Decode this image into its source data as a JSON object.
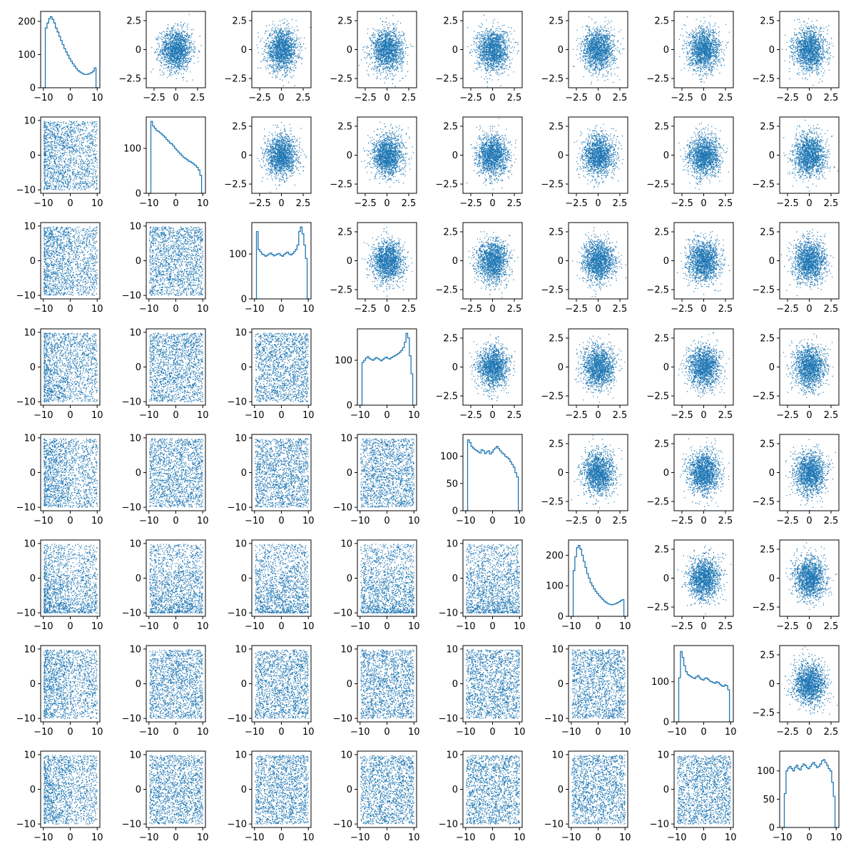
{
  "figure": {
    "rows": 8,
    "cols": 8
  },
  "chart_data": {
    "type": "scatter",
    "layout": "pair-plot grid: histograms on diagonal, scatter of independent normals above, scatter of uniform-range samples below",
    "color": "#1f77b4",
    "grid": false,
    "diagonal": [
      {
        "type": "hist",
        "ylim": [
          0,
          230
        ],
        "yticks": [
          0,
          100,
          200
        ],
        "xticks": [
          -10,
          0,
          10
        ],
        "bins_x": [
          -9.9,
          10.2
        ],
        "counts": [
          0,
          180,
          195,
          208,
          214,
          206,
          195,
          180,
          168,
          155,
          142,
          130,
          118,
          108,
          98,
          88,
          80,
          72,
          65,
          58,
          52,
          48,
          45,
          42,
          40,
          40,
          41,
          43,
          46,
          50,
          60,
          0
        ]
      },
      {
        "type": "hist",
        "ylim": [
          0,
          170
        ],
        "yticks": [
          0,
          100
        ],
        "xticks": [
          -10,
          0,
          10
        ],
        "bins_x": [
          -9.9,
          10.2
        ],
        "counts": [
          0,
          160,
          150,
          145,
          140,
          138,
          135,
          132,
          128,
          125,
          120,
          116,
          112,
          110,
          105,
          100,
          96,
          92,
          88,
          84,
          80,
          78,
          75,
          72,
          70,
          68,
          65,
          62,
          58,
          52,
          40,
          0
        ]
      },
      {
        "type": "hist",
        "ylim": [
          0,
          170
        ],
        "yticks": [
          0,
          100
        ],
        "xticks": [
          -10,
          0,
          10
        ],
        "bins_x": [
          -9.9,
          10.2
        ],
        "counts": [
          0,
          150,
          110,
          105,
          100,
          98,
          95,
          97,
          100,
          102,
          99,
          96,
          98,
          100,
          101,
          97,
          95,
          99,
          102,
          104,
          100,
          98,
          101,
          105,
          110,
          120,
          150,
          160,
          145,
          120,
          90,
          0
        ]
      },
      {
        "type": "hist",
        "ylim": [
          0,
          170
        ],
        "yticks": [
          0,
          100
        ],
        "xticks": [
          -10,
          0,
          10
        ],
        "bins_x": [
          -9.9,
          10.2
        ],
        "counts": [
          0,
          95,
          100,
          105,
          108,
          104,
          102,
          100,
          103,
          106,
          104,
          101,
          99,
          102,
          105,
          107,
          104,
          103,
          106,
          108,
          110,
          112,
          115,
          118,
          122,
          128,
          140,
          160,
          150,
          110,
          70,
          0
        ]
      },
      {
        "type": "hist",
        "ylim": [
          0,
          140
        ],
        "yticks": [
          0,
          50,
          100
        ],
        "xticks": [
          -10,
          0,
          10
        ],
        "bins_x": [
          -9.9,
          10.2
        ],
        "counts": [
          0,
          130,
          125,
          118,
          115,
          112,
          110,
          108,
          106,
          112,
          110,
          105,
          108,
          110,
          104,
          107,
          112,
          115,
          118,
          114,
          110,
          106,
          104,
          100,
          98,
          95,
          90,
          85,
          80,
          70,
          62,
          0
        ]
      },
      {
        "type": "hist",
        "ylim": [
          0,
          250
        ],
        "yticks": [
          0,
          100,
          200
        ],
        "xticks": [
          -10,
          0,
          10
        ],
        "bins_x": [
          -9.9,
          10.2
        ],
        "counts": [
          0,
          150,
          195,
          225,
          232,
          220,
          200,
          180,
          160,
          140,
          125,
          110,
          100,
          90,
          82,
          75,
          68,
          62,
          56,
          50,
          46,
          42,
          40,
          38,
          38,
          40,
          42,
          45,
          48,
          52,
          55,
          0
        ]
      },
      {
        "type": "hist",
        "ylim": [
          0,
          190
        ],
        "yticks": [
          0,
          100
        ],
        "xticks": [
          -10,
          0,
          10
        ],
        "bins_x": [
          -9.9,
          10.2
        ],
        "counts": [
          0,
          110,
          175,
          160,
          140,
          125,
          118,
          115,
          112,
          110,
          108,
          112,
          115,
          110,
          106,
          104,
          108,
          110,
          106,
          102,
          100,
          98,
          96,
          100,
          98,
          94,
          90,
          88,
          92,
          90,
          80,
          0
        ]
      },
      {
        "type": "hist",
        "ylim": [
          0,
          135
        ],
        "yticks": [
          0,
          50,
          100
        ],
        "xticks": [
          -10,
          0,
          10
        ],
        "bins_x": [
          -9.9,
          10.2
        ],
        "counts": [
          0,
          60,
          100,
          105,
          108,
          104,
          100,
          106,
          110,
          104,
          102,
          108,
          112,
          110,
          106,
          104,
          108,
          112,
          115,
          110,
          106,
          108,
          112,
          118,
          120,
          115,
          110,
          104,
          100,
          80,
          55,
          0
        ]
      }
    ],
    "upper_scatter": {
      "distribution": "normal",
      "mean": [
        0,
        0
      ],
      "sd": [
        0.9,
        0.9
      ],
      "xlim": [
        -3.4,
        3.4
      ],
      "ylim": [
        -3.3,
        3.3
      ],
      "xticks": [
        -2.5,
        0.0,
        2.5
      ],
      "yticks": [
        -2.5,
        0.0,
        2.5
      ]
    },
    "lower_scatter": {
      "distribution": "uniform-like",
      "xlim": [
        -11,
        11
      ],
      "ylim": [
        -11,
        11
      ],
      "xticks": [
        -10,
        0,
        10
      ],
      "yticks": [
        -10,
        0,
        10
      ]
    }
  }
}
